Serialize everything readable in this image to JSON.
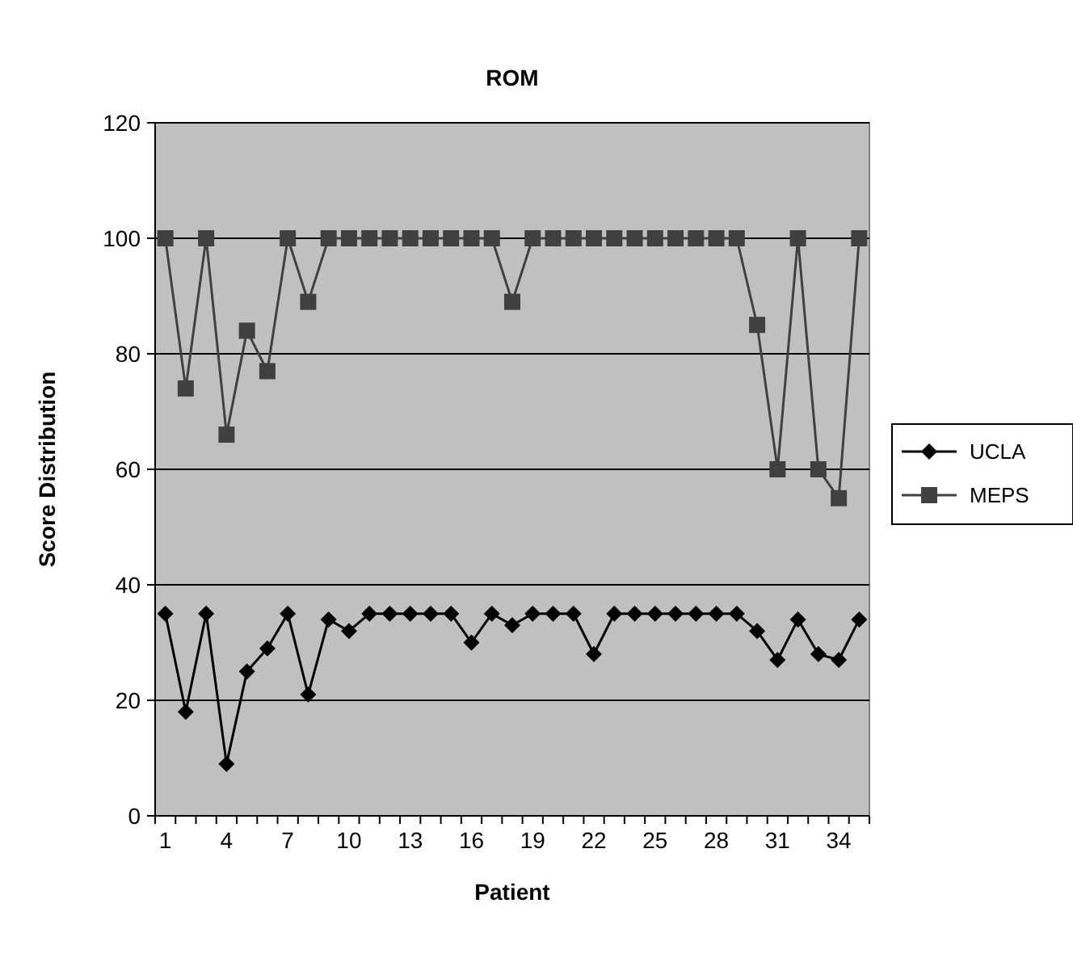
{
  "chart_data": {
    "type": "line",
    "title": "ROM",
    "xlabel": "Patient",
    "ylabel": "Score Distribution",
    "categories": [
      "1",
      null,
      null,
      "4",
      null,
      null,
      "7",
      null,
      null,
      "10",
      null,
      null,
      "13",
      null,
      null,
      "16",
      null,
      null,
      "19",
      null,
      null,
      "22",
      null,
      null,
      "25",
      null,
      null,
      "28",
      null,
      null,
      "31",
      null,
      null,
      "34",
      null
    ],
    "series": [
      {
        "name": "UCLA",
        "color": "#000000",
        "marker": "diamond",
        "values": [
          35,
          18,
          35,
          9,
          25,
          29,
          35,
          21,
          34,
          32,
          35,
          35,
          35,
          35,
          35,
          30,
          35,
          33,
          35,
          35,
          35,
          28,
          35,
          35,
          35,
          35,
          35,
          35,
          35,
          32,
          27,
          34,
          28,
          27,
          34
        ]
      },
      {
        "name": "MEPS",
        "color": "#404040",
        "marker": "square",
        "values": [
          100,
          74,
          100,
          66,
          84,
          77,
          100,
          89,
          100,
          100,
          100,
          100,
          100,
          100,
          100,
          100,
          100,
          89,
          100,
          100,
          100,
          100,
          100,
          100,
          100,
          100,
          100,
          100,
          100,
          85,
          60,
          100,
          60,
          55,
          100
        ]
      }
    ],
    "ylim": [
      0,
      120
    ],
    "yticks": [
      0,
      20,
      40,
      60,
      80,
      100,
      120
    ],
    "grid": "y",
    "legend": "right"
  }
}
